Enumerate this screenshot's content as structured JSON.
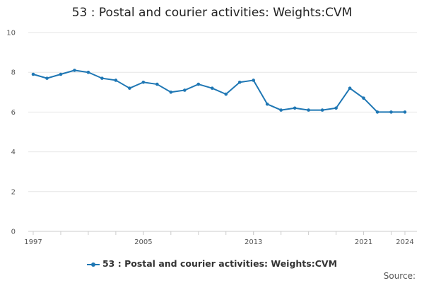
{
  "chart_data": {
    "type": "line",
    "title": "53 : Postal and courier activities: Weights:CVM",
    "xlabel": "",
    "ylabel": "",
    "x": [
      1997,
      1998,
      1999,
      2000,
      2001,
      2002,
      2003,
      2004,
      2005,
      2006,
      2007,
      2008,
      2009,
      2010,
      2011,
      2012,
      2013,
      2014,
      2015,
      2016,
      2017,
      2018,
      2019,
      2020,
      2021,
      2022,
      2023,
      2024
    ],
    "series": [
      {
        "name": "53 : Postal and courier activities: Weights:CVM",
        "color": "#1f77b4",
        "values": [
          7.9,
          7.7,
          7.9,
          8.1,
          8.0,
          7.7,
          7.6,
          7.2,
          7.5,
          7.4,
          7.0,
          7.1,
          7.4,
          7.2,
          6.9,
          7.5,
          7.6,
          6.4,
          6.1,
          6.2,
          6.1,
          6.1,
          6.2,
          7.2,
          6.7,
          6.0,
          6.0,
          6.0
        ]
      }
    ],
    "xticks": [
      "1997",
      "2005",
      "2013",
      "2021",
      "2024"
    ],
    "yticks": [
      "0",
      "2",
      "4",
      "6",
      "8",
      "10"
    ],
    "ylim": [
      0,
      10
    ],
    "xlim": [
      1997,
      2024
    ],
    "grid": true,
    "legend": "bottom",
    "source_label": "Source:"
  }
}
